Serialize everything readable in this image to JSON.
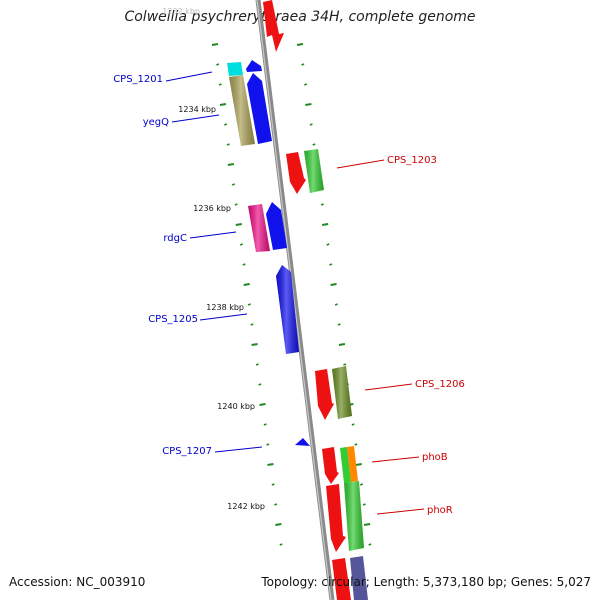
{
  "title": "Colwellia psychrerythraea 34H, complete genome",
  "footer": {
    "accession": "Accession: NC_003910",
    "summary": "Topology: circular; Length: 5,373,180 bp; Genes: 5,027"
  },
  "colors": {
    "backbone": "#888888",
    "tick": "#228822",
    "label_forward": "#0000cc",
    "label_reverse": "#cc0000"
  },
  "ruler": {
    "top_faded_label": "1232 kbp",
    "labels": [
      "1234 kbp",
      "1236 kbp",
      "1238 kbp",
      "1240 kbp",
      "1242 kbp"
    ]
  },
  "gene_labels": [
    {
      "id": "lbl-cps1201",
      "text": "CPS_1201",
      "color": "#0000cc"
    },
    {
      "id": "lbl-yegq",
      "text": "yegQ",
      "color": "#0000cc"
    },
    {
      "id": "lbl-cps1203",
      "text": "CPS_1203",
      "color": "#cc0000"
    },
    {
      "id": "lbl-rdgc",
      "text": "rdgC",
      "color": "#0000cc"
    },
    {
      "id": "lbl-cps1205",
      "text": "CPS_1205",
      "color": "#0000cc"
    },
    {
      "id": "lbl-cps1206",
      "text": "CPS_1206",
      "color": "#cc0000"
    },
    {
      "id": "lbl-cps1207",
      "text": "CPS_1207",
      "color": "#0000cc"
    },
    {
      "id": "lbl-phob",
      "text": "phoB",
      "color": "#cc0000"
    },
    {
      "id": "lbl-phor",
      "text": "phoR",
      "color": "#cc0000"
    }
  ],
  "features": [
    {
      "id": "f-red-top",
      "color": "#ee1111"
    },
    {
      "id": "f-cyan",
      "color": "#00dddd"
    },
    {
      "id": "f-blue-small",
      "color": "#1111ee"
    },
    {
      "id": "f-olive-yegq",
      "color": "#aaa055"
    },
    {
      "id": "f-blue-yegq",
      "color": "#1111ee"
    },
    {
      "id": "f-red-1203",
      "color": "#ee1111"
    },
    {
      "id": "f-green-1203",
      "color": "#33cc33"
    },
    {
      "id": "f-pink-rdgc",
      "color": "#ee1188"
    },
    {
      "id": "f-blue-rdgc",
      "color": "#1111ee"
    },
    {
      "id": "f-blue-1205",
      "color": "#1111ee"
    },
    {
      "id": "f-red-1206",
      "color": "#ee1111"
    },
    {
      "id": "f-olive-1206",
      "color": "#6b8e23"
    },
    {
      "id": "f-blue-1207",
      "color": "#1111ee"
    },
    {
      "id": "f-red-phob",
      "color": "#ee1111"
    },
    {
      "id": "f-green-phob",
      "color": "#33cc33"
    },
    {
      "id": "f-orange-phob",
      "color": "#ff8800"
    },
    {
      "id": "f-red-phor",
      "color": "#ee1111"
    },
    {
      "id": "f-green-phor",
      "color": "#33cc33"
    },
    {
      "id": "f-red-bottom",
      "color": "#ee1111"
    },
    {
      "id": "f-slate-bottom",
      "color": "#555599"
    }
  ]
}
